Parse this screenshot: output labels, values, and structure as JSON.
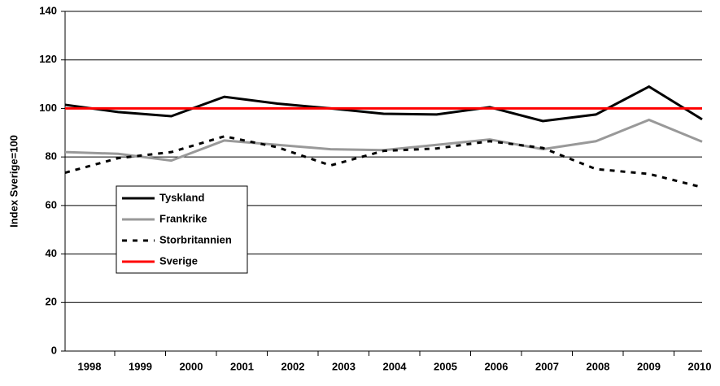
{
  "chart_data": {
    "type": "line",
    "y_label": "Index Sverige=100",
    "categories": [
      "1998",
      "1999",
      "2000",
      "2001",
      "2002",
      "2003",
      "2004",
      "2005",
      "2006",
      "2007",
      "2008",
      "2009",
      "2010"
    ],
    "series": [
      {
        "name": "Tyskland",
        "color": "#000000",
        "dash": "solid",
        "values": [
          101.5,
          98.5,
          96.8,
          104.8,
          102,
          100,
          97.8,
          97.5,
          100.5,
          94.8,
          97.5,
          109,
          95.5
        ]
      },
      {
        "name": "Frankrike",
        "color": "#999999",
        "dash": "solid",
        "values": [
          82,
          81.3,
          78.5,
          86.8,
          85,
          83.2,
          82.8,
          85,
          87.2,
          83.2,
          86.5,
          95.3,
          86.3
        ]
      },
      {
        "name": "Storbritannien",
        "color": "#000000",
        "dash": "dashed",
        "values": [
          73.5,
          79.5,
          82,
          88.5,
          84,
          76.5,
          82.5,
          83.5,
          86.5,
          83.7,
          75,
          73,
          67.5
        ]
      },
      {
        "name": "Sverige",
        "color": "#ff0000",
        "dash": "solid",
        "values": [
          100,
          100,
          100,
          100,
          100,
          100,
          100,
          100,
          100,
          100,
          100,
          100,
          100
        ]
      }
    ],
    "ylim": [
      0,
      140
    ],
    "yticks": [
      0,
      20,
      40,
      60,
      80,
      100,
      120,
      140
    ],
    "grid": true
  }
}
